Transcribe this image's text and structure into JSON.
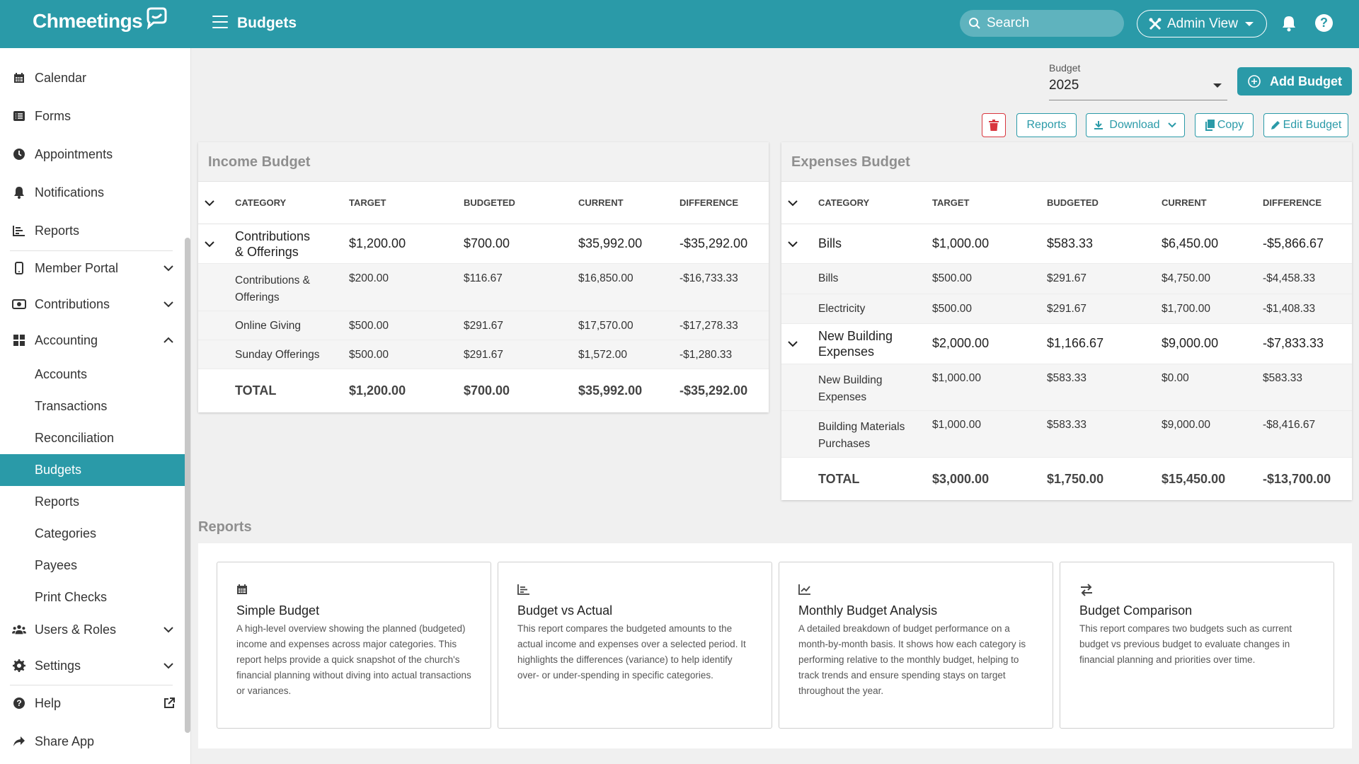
{
  "app": {
    "name": "Chmeetings",
    "page_title": "Budgets"
  },
  "header": {
    "search_placeholder": "Search",
    "admin_view": "Admin View"
  },
  "sidebar": {
    "items": [
      {
        "label": "Calendar"
      },
      {
        "label": "Forms"
      },
      {
        "label": "Appointments"
      },
      {
        "label": "Notifications"
      },
      {
        "label": "Reports"
      },
      {
        "label": "Member Portal"
      },
      {
        "label": "Contributions"
      },
      {
        "label": "Accounting"
      }
    ],
    "accounting_sub": [
      {
        "label": "Accounts"
      },
      {
        "label": "Transactions"
      },
      {
        "label": "Reconciliation"
      },
      {
        "label": "Budgets"
      },
      {
        "label": "Reports"
      },
      {
        "label": "Categories"
      },
      {
        "label": "Payees"
      },
      {
        "label": "Print Checks"
      }
    ],
    "users_roles": "Users & Roles",
    "settings": "Settings",
    "help": "Help",
    "share_app": "Share App"
  },
  "budget": {
    "label": "Budget",
    "value": "2025",
    "add_label": "Add Budget"
  },
  "toolbar": {
    "reports": "Reports",
    "download": "Download",
    "copy": "Copy",
    "edit": "Edit Budget"
  },
  "columns": {
    "category": "CATEGORY",
    "target": "TARGET",
    "budgeted": "BUDGETED",
    "current": "CURRENT",
    "difference": "DIFFERENCE"
  },
  "income": {
    "title": "Income Budget",
    "parent": {
      "l1": "Contributions",
      "l2": "& Offerings",
      "target": "$1,200.00",
      "budgeted": "$700.00",
      "current": "$35,992.00",
      "difference": "-$35,292.00"
    },
    "children": [
      {
        "l1": "Contributions &",
        "l2": "Offerings",
        "target": "$200.00",
        "budgeted": "$116.67",
        "current": "$16,850.00",
        "difference": "-$16,733.33"
      },
      {
        "l1": "Online Giving",
        "target": "$500.00",
        "budgeted": "$291.67",
        "current": "$17,570.00",
        "difference": "-$17,278.33"
      },
      {
        "l1": "Sunday Offerings",
        "target": "$500.00",
        "budgeted": "$291.67",
        "current": "$1,572.00",
        "difference": "-$1,280.33"
      }
    ],
    "total": {
      "label": "TOTAL",
      "target": "$1,200.00",
      "budgeted": "$700.00",
      "current": "$35,992.00",
      "difference": "-$35,292.00"
    }
  },
  "expenses": {
    "title": "Expenses Budget",
    "bills": {
      "label": "Bills",
      "target": "$1,000.00",
      "budgeted": "$583.33",
      "current": "$6,450.00",
      "difference": "-$5,866.67"
    },
    "bills_children": [
      {
        "l1": "Bills",
        "target": "$500.00",
        "budgeted": "$291.67",
        "current": "$4,750.00",
        "difference": "-$4,458.33"
      },
      {
        "l1": "Electricity",
        "target": "$500.00",
        "budgeted": "$291.67",
        "current": "$1,700.00",
        "difference": "-$1,408.33"
      }
    ],
    "building": {
      "l1": "New Building",
      "l2": "Expenses",
      "target": "$2,000.00",
      "budgeted": "$1,166.67",
      "current": "$9,000.00",
      "difference": "-$7,833.33"
    },
    "building_children": [
      {
        "l1": "New Building",
        "l2": "Expenses",
        "target": "$1,000.00",
        "budgeted": "$583.33",
        "current": "$0.00",
        "difference": "$583.33"
      },
      {
        "l1": "Building Materials",
        "l2": "Purchases",
        "target": "$1,000.00",
        "budgeted": "$583.33",
        "current": "$9,000.00",
        "difference": "-$8,416.67"
      }
    ],
    "total": {
      "label": "TOTAL",
      "target": "$3,000.00",
      "budgeted": "$1,750.00",
      "current": "$15,450.00",
      "difference": "-$13,700.00"
    }
  },
  "reports": {
    "title": "Reports",
    "cards": [
      {
        "icon": "calendar-icon",
        "title": "Simple Budget",
        "desc": "A high-level overview showing the planned (budgeted) income and expenses across major categories. This report helps provide a quick snapshot of the church's financial planning without diving into actual transactions or variances."
      },
      {
        "icon": "bar-chart-icon",
        "title": "Budget vs Actual",
        "desc": "This report compares the budgeted amounts to the actual income and expenses over a selected period. It highlights the differences (variance) to help identify over- or under-spending in specific categories."
      },
      {
        "icon": "line-chart-icon",
        "title": "Monthly Budget Analysis",
        "desc": "A detailed breakdown of budget performance on a month-by-month basis. It shows how each category is performing relative to the monthly budget, helping to track trends and ensure spending stays on target throughout the year."
      },
      {
        "icon": "swap-icon",
        "title": "Budget Comparison",
        "desc": "This report compares two budgets such as current budget vs previous budget to evaluate changes in financial planning and priorities over time."
      }
    ]
  }
}
